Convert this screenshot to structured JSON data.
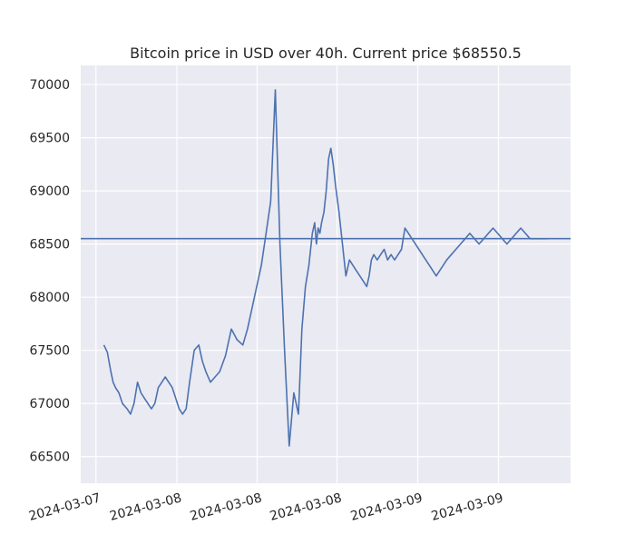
{
  "chart_data": {
    "type": "line",
    "title": "Bitcoin price in USD over 40h. Current price $68550.5",
    "xlabel": "",
    "ylabel": "",
    "grid": true,
    "legend": false,
    "x_tick_labels": [
      "2024-03-07",
      "2024-03-08",
      "2024-03-08",
      "2024-03-08",
      "2024-03-09",
      "2024-03-09"
    ],
    "y_ticks": [
      66500,
      67000,
      67500,
      68000,
      68500,
      69000,
      69500,
      70000
    ],
    "y_tick_labels": [
      "66500",
      "67000",
      "67500",
      "68000",
      "68500",
      "69000",
      "69500",
      "70000"
    ],
    "ylim": [
      66250,
      70180
    ],
    "x_range_hours": [
      -2,
      40.3
    ],
    "reference_line": {
      "value": 68550.5
    },
    "series": [
      {
        "color": "#4c72b0",
        "x_hours": [
          0,
          0.3,
          0.6,
          0.8,
          1,
          1.3,
          1.6,
          2,
          2.3,
          2.6,
          2.9,
          3.2,
          3.5,
          3.8,
          4.1,
          4.4,
          4.7,
          5,
          5.3,
          5.6,
          5.9,
          6.2,
          6.5,
          6.8,
          7.1,
          7.4,
          7.8,
          8.2,
          8.5,
          8.8,
          9.2,
          9.6,
          10,
          10.5,
          11,
          11.5,
          12,
          12.4,
          12.8,
          13.2,
          13.6,
          14,
          14.4,
          14.8,
          15.2,
          15.6,
          16,
          16.4,
          16.8,
          17.1,
          17.4,
          17.7,
          18.0,
          18.2,
          18.35,
          18.5,
          18.65,
          18.8,
          19.0,
          19.2,
          19.4,
          19.6,
          19.8,
          20.0,
          20.3,
          20.6,
          20.9,
          21.2,
          21.5,
          21.8,
          22.1,
          22.4,
          22.7,
          22.9,
          23.1,
          23.3,
          23.6,
          23.9,
          24.2,
          24.5,
          24.8,
          25.1,
          25.4,
          25.7,
          26.0,
          26.3,
          26.6,
          26.9,
          27.2,
          27.5,
          27.8,
          28.1,
          28.4,
          28.7,
          29.0,
          29.3,
          29.6,
          30.0,
          30.4,
          30.8,
          31.2,
          31.6,
          32.0,
          32.4,
          32.8,
          33.2,
          33.6,
          34.0,
          34.4,
          34.8,
          35.2,
          35.6,
          36.0,
          36.4,
          36.8,
          37.2,
          37.6,
          38.0,
          38.3
        ],
        "values": [
          67550,
          67480,
          67300,
          67200,
          67150,
          67100,
          67000,
          66950,
          66900,
          67000,
          67200,
          67100,
          67050,
          67000,
          66950,
          67000,
          67150,
          67200,
          67250,
          67200,
          67150,
          67050,
          66950,
          66900,
          66950,
          67200,
          67500,
          67550,
          67400,
          67300,
          67200,
          67250,
          67300,
          67450,
          67700,
          67600,
          67550,
          67700,
          67900,
          68100,
          68300,
          68600,
          68900,
          69950,
          68500,
          67500,
          66600,
          67100,
          66900,
          67700,
          68100,
          68300,
          68600,
          68700,
          68500,
          68650,
          68600,
          68700,
          68800,
          69000,
          69300,
          69400,
          69250,
          69050,
          68800,
          68500,
          68200,
          68350,
          68300,
          68250,
          68200,
          68150,
          68100,
          68200,
          68350,
          68400,
          68350,
          68400,
          68450,
          68350,
          68400,
          68350,
          68400,
          68450,
          68650,
          68600,
          68550,
          68500,
          68450,
          68400,
          68350,
          68300,
          68250,
          68200,
          68250,
          68300,
          68350,
          68400,
          68450,
          68500,
          68550,
          68600,
          68550,
          68500,
          68550,
          68600,
          68650,
          68600,
          68550,
          68500,
          68550,
          68600,
          68650,
          68600,
          68550,
          68550,
          68550,
          68550,
          68550
        ]
      }
    ]
  }
}
